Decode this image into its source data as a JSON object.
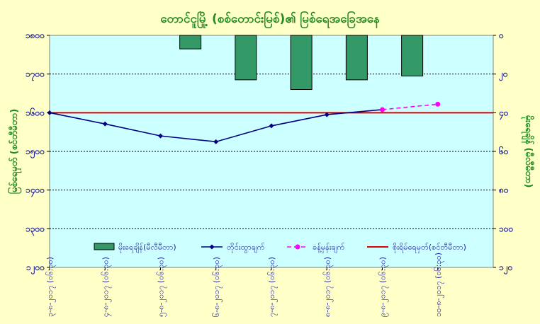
{
  "chart_data": {
    "type": "line",
    "title": "တောင်ငူမြို့ (စစ်တောင်းမြစ်)၏ မြစ်ရေအခြေအနေ",
    "ylabel_left": "မြစ်ရေမှတ် (စင်တီမီတာ)",
    "ylabel_right": "မိုးရေချိန် (မီလီမီတာ)",
    "categories": [
      "၃-၈-၂၀၁၇ (၀၆:၃၀)",
      "၄-၈-၂၀၁၇ (၀၆:၃၀)",
      "၅-၈-၂၀၁၇ (၀၆:၃၀)",
      "၆-၈-၂၀၁၇ (၀၆:၃၀)",
      "၇-၈-၂၀၁၇ (၀၆:၃၀)",
      "၈-၈-၂၀၁၇ (၀၆:၃၀)",
      "၉-၈-၂၀၁၇ (၀၆:၃၀)",
      "၁၀-၈-၂၀၁၇ (၀၆:၃၀)"
    ],
    "left_axis": {
      "min": 1200,
      "max": 1800,
      "step": 100,
      "tick_labels": [
        "၁၈၀၀",
        "၁၇၀၀",
        "၁၆၀၀",
        "၁၅၀၀",
        "၁၄၀၀",
        "၁၃၀၀",
        "၁၂၀၀"
      ]
    },
    "right_axis": {
      "min": 0,
      "max": 120,
      "step": 20,
      "reversed": true,
      "tick_labels": [
        "၀",
        "၂၀",
        "၄၀",
        "၆၀",
        "၈၀",
        "၁၀၀",
        "၁၂၀"
      ]
    },
    "series": [
      {
        "name": "မိုးရေချိန်(မီလီမီတာ)",
        "kind": "bar",
        "axis": "right",
        "color": "#339966",
        "values": [
          null,
          null,
          7,
          23,
          28,
          23,
          21,
          null
        ]
      },
      {
        "name": "တိုင်းထွာချက်",
        "kind": "line",
        "axis": "left",
        "color": "#000080",
        "marker": "diamond",
        "values": [
          1600,
          1571,
          1540,
          1525,
          1566,
          1595,
          1608,
          null
        ]
      },
      {
        "name": "ခန့်မှန်းချက်",
        "kind": "line",
        "axis": "left",
        "color": "#ff00ff",
        "dashed": true,
        "marker": "circle",
        "values": [
          null,
          null,
          null,
          null,
          null,
          null,
          1608,
          1622
        ]
      },
      {
        "name": "စိုးရိမ်ရေမှတ်(စင်တီမီတာ)",
        "kind": "hline",
        "axis": "left",
        "color": "#dd0000",
        "value": 1600
      }
    ],
    "grid": true,
    "legend_position": "bottom-inside"
  }
}
